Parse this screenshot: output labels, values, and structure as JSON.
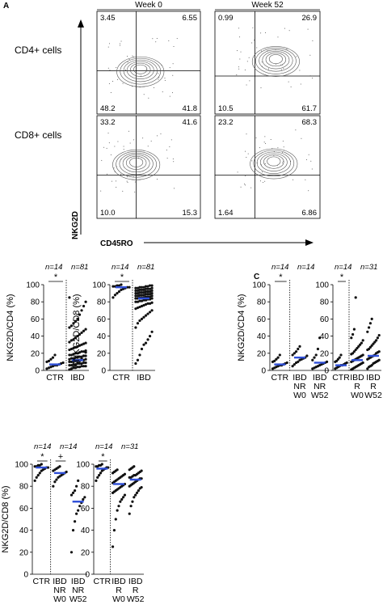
{
  "panel_labels": {
    "a": "A",
    "c": "C"
  },
  "flow": {
    "col_headers": [
      "Week 0",
      "Week 52"
    ],
    "row_labels": [
      "CD4+ cells",
      "CD8+ cells"
    ],
    "y_axis": "NKG2D",
    "x_axis": "CD45RO",
    "quadrants": [
      {
        "ul": "3.45",
        "ur": "6.55",
        "ll": "48.2",
        "lr": "41.8"
      },
      {
        "ul": "0.99",
        "ur": "26.9",
        "ll": "10.5",
        "lr": "61.7"
      },
      {
        "ul": "33.2",
        "ur": "41.6",
        "ll": "10.0",
        "lr": "15.3"
      },
      {
        "ul": "23.2",
        "ur": "68.3",
        "ll": "1.64",
        "lr": "6.86"
      }
    ]
  },
  "chart_data": [
    {
      "type": "scatter",
      "id": "b1",
      "ylabel": "NKG2D/CD4 (%)",
      "ylim": [
        0,
        100
      ],
      "yticks": [
        0,
        20,
        40,
        60,
        80,
        100
      ],
      "categories": [
        "CTR",
        "IBD"
      ],
      "n_labels": [
        "n=14",
        "n=81"
      ],
      "sig": [
        "*"
      ],
      "medians": [
        7,
        12
      ],
      "points": [
        [
          2,
          3,
          4,
          5,
          6,
          6,
          7,
          8,
          9,
          10,
          11,
          13,
          15,
          18
        ],
        [
          1,
          2,
          3,
          3,
          4,
          4,
          5,
          5,
          5,
          6,
          6,
          7,
          7,
          8,
          8,
          8,
          9,
          9,
          10,
          10,
          10,
          11,
          11,
          12,
          12,
          12,
          13,
          13,
          14,
          14,
          15,
          15,
          16,
          16,
          17,
          17,
          18,
          18,
          19,
          20,
          20,
          21,
          22,
          22,
          23,
          24,
          25,
          26,
          27,
          28,
          29,
          30,
          31,
          32,
          33,
          35,
          36,
          38,
          40,
          42,
          44,
          46,
          48,
          50,
          52,
          55,
          57,
          60,
          65,
          70,
          75,
          80,
          85,
          2,
          4,
          6,
          9,
          11,
          14,
          17,
          21
        ]
      ]
    },
    {
      "type": "scatter",
      "id": "b2",
      "ylabel": "NKG2D/CD8 (%)",
      "ylim": [
        0,
        100
      ],
      "yticks": [
        0,
        20,
        40,
        60,
        80,
        100
      ],
      "categories": [
        "CTR",
        "IBD"
      ],
      "n_labels": [
        "n=14",
        "n=81"
      ],
      "sig": [
        "*"
      ],
      "medians": [
        97,
        84
      ],
      "points": [
        [
          85,
          88,
          90,
          92,
          94,
          95,
          96,
          97,
          97,
          98,
          98,
          99,
          99,
          100
        ],
        [
          8,
          12,
          18,
          25,
          30,
          32,
          36,
          40,
          45,
          50,
          55,
          58,
          60,
          62,
          64,
          66,
          68,
          70,
          72,
          73,
          74,
          75,
          76,
          77,
          78,
          78,
          79,
          80,
          80,
          81,
          81,
          82,
          82,
          83,
          83,
          84,
          84,
          84,
          85,
          85,
          85,
          86,
          86,
          86,
          87,
          87,
          87,
          88,
          88,
          88,
          89,
          89,
          89,
          90,
          90,
          90,
          91,
          91,
          91,
          92,
          92,
          92,
          93,
          93,
          93,
          94,
          94,
          94,
          95,
          95,
          95,
          96,
          96,
          96,
          97,
          97,
          97,
          98,
          98,
          99,
          99
        ]
      ]
    },
    {
      "type": "scatter",
      "id": "c1",
      "ylabel": "NKG2D/CD4 (%)",
      "ylim": [
        0,
        100
      ],
      "yticks": [
        0,
        20,
        40,
        60,
        80,
        100
      ],
      "categories": [
        [
          "CTR"
        ],
        [
          "IBD",
          "NR",
          "W0"
        ],
        [
          "IBD",
          "NR",
          "W52"
        ]
      ],
      "n_labels": [
        "n=14",
        "n=14"
      ],
      "sig": [
        "*"
      ],
      "medians": [
        7,
        15,
        9
      ],
      "points": [
        [
          2,
          3,
          4,
          5,
          6,
          6,
          7,
          8,
          9,
          10,
          11,
          13,
          15,
          18
        ],
        [
          5,
          7,
          9,
          10,
          12,
          13,
          14,
          15,
          17,
          18,
          20,
          22,
          25,
          28
        ],
        [
          2,
          3,
          4,
          5,
          6,
          7,
          8,
          9,
          10,
          12,
          15,
          18,
          25,
          38
        ]
      ]
    },
    {
      "type": "scatter",
      "id": "c2",
      "ylabel": "",
      "ylim": [
        0,
        100
      ],
      "yticks": [
        0,
        20,
        40,
        60,
        80,
        100
      ],
      "categories": [
        [
          "CTR"
        ],
        [
          "IBD",
          "R",
          "W0"
        ],
        [
          "IBD",
          "R",
          "W52"
        ]
      ],
      "n_labels": [
        "n=14",
        "n=31"
      ],
      "sig": [
        "*"
      ],
      "medians": [
        6,
        12,
        17
      ],
      "points": [
        [
          2,
          3,
          4,
          5,
          6,
          6,
          7,
          8,
          9,
          10,
          11,
          13,
          15,
          18
        ],
        [
          1,
          2,
          3,
          4,
          5,
          6,
          7,
          8,
          9,
          10,
          11,
          12,
          13,
          14,
          15,
          16,
          17,
          18,
          19,
          20,
          22,
          24,
          26,
          28,
          30,
          32,
          35,
          38,
          42,
          48,
          85
        ],
        [
          2,
          4,
          5,
          6,
          8,
          9,
          10,
          11,
          12,
          13,
          14,
          15,
          16,
          17,
          18,
          20,
          21,
          22,
          24,
          25,
          27,
          29,
          31,
          33,
          35,
          38,
          41,
          45,
          50,
          55,
          60
        ]
      ]
    },
    {
      "type": "scatter",
      "id": "d1",
      "ylabel": "NKG2D/CD8 (%)",
      "ylim": [
        0,
        100
      ],
      "yticks": [
        0,
        20,
        40,
        60,
        80,
        100
      ],
      "categories": [
        [
          "CTR"
        ],
        [
          "IBD",
          "NR",
          "W0"
        ],
        [
          "IBD",
          "NR",
          "W52"
        ]
      ],
      "n_labels": [
        "n=14",
        "n=14"
      ],
      "sig": [
        "*",
        "+"
      ],
      "medians": [
        97,
        92,
        66
      ],
      "points": [
        [
          85,
          88,
          90,
          92,
          94,
          95,
          96,
          97,
          97,
          98,
          98,
          99,
          99,
          100
        ],
        [
          80,
          84,
          86,
          88,
          89,
          90,
          91,
          92,
          93,
          94,
          95,
          96,
          97,
          98
        ],
        [
          20,
          40,
          48,
          55,
          58,
          62,
          65,
          68,
          70,
          72,
          74,
          76,
          80,
          85
        ]
      ]
    },
    {
      "type": "scatter",
      "id": "d2",
      "ylabel": "",
      "ylim": [
        0,
        100
      ],
      "yticks": [
        0,
        20,
        40,
        60,
        80,
        100
      ],
      "categories": [
        [
          "CTR"
        ],
        [
          "IBD",
          "R",
          "W0"
        ],
        [
          "IBD",
          "R",
          "W52"
        ]
      ],
      "n_labels": [
        "n=14",
        "n=31"
      ],
      "sig": [
        "*"
      ],
      "medians": [
        96,
        82,
        86
      ],
      "points": [
        [
          85,
          88,
          90,
          92,
          94,
          95,
          96,
          97,
          97,
          98,
          98,
          99,
          99,
          100
        ],
        [
          25,
          40,
          50,
          58,
          62,
          66,
          68,
          70,
          72,
          74,
          75,
          76,
          77,
          78,
          79,
          80,
          81,
          82,
          83,
          84,
          85,
          86,
          87,
          88,
          89,
          90,
          91,
          92,
          93,
          94,
          95
        ],
        [
          55,
          62,
          66,
          70,
          72,
          74,
          76,
          78,
          79,
          80,
          81,
          82,
          83,
          84,
          85,
          86,
          87,
          87,
          88,
          88,
          89,
          90,
          90,
          91,
          92,
          93,
          94,
          95,
          96,
          97,
          98
        ]
      ]
    }
  ]
}
